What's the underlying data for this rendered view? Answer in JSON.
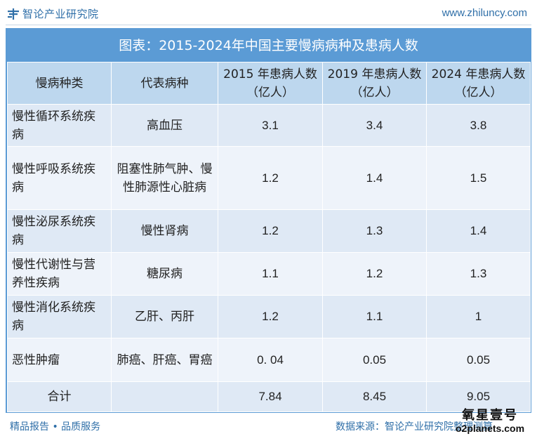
{
  "header": {
    "brand_name": "智论产业研究院",
    "brand_icon": "logo-icon",
    "site_url": "www.zhiluncy.com"
  },
  "table": {
    "title": "图表：2015-2024年中国主要慢病病种及患病人数",
    "headers": [
      "慢病种类",
      "代表病种",
      "2015 年患病人数（亿人）",
      "2019 年患病人数（亿人）",
      "2024 年患病人数（亿人）"
    ],
    "rows": [
      {
        "category": "慢性循环系统疾病",
        "disease": "高血压",
        "y2015": "3.1",
        "y2019": "3.4",
        "y2024": "3.8"
      },
      {
        "category": "慢性呼吸系统疾病",
        "disease": "阻塞性肺气肿、慢性肺源性心脏病",
        "y2015": "1.2",
        "y2019": "1.4",
        "y2024": "1.5"
      },
      {
        "category": "慢性泌尿系统疾病",
        "disease": "慢性肾病",
        "y2015": "1.2",
        "y2019": "1.3",
        "y2024": "1.4"
      },
      {
        "category": "慢性代谢性与营养性疾病",
        "disease": "糖尿病",
        "y2015": "1.1",
        "y2019": "1.2",
        "y2024": "1.3"
      },
      {
        "category": "慢性消化系统疾病",
        "disease": "乙肝、丙肝",
        "y2015": "1.2",
        "y2019": "1.1",
        "y2024": "1"
      },
      {
        "category": "恶性肿瘤",
        "disease": "肺癌、肝癌、胃癌",
        "y2015": "0. 04",
        "y2019": "0.05",
        "y2024": "0.05"
      },
      {
        "category": "合计",
        "disease": "",
        "y2015": "7.84",
        "y2019": "8.45",
        "y2024": "9.05"
      }
    ]
  },
  "footer": {
    "left": "精品报告 • 品质服务",
    "source": "数据来源：智论产业研究院整理测算"
  },
  "watermark": {
    "cn": "氧星壹号",
    "en": "o2planets.com"
  },
  "colors": {
    "accent": "#5b9bd5",
    "header_cell": "#bdd7ee",
    "row_light": "#eef3fa",
    "row_dark": "#dfe9f5",
    "brand_text": "#2f6fa8"
  }
}
